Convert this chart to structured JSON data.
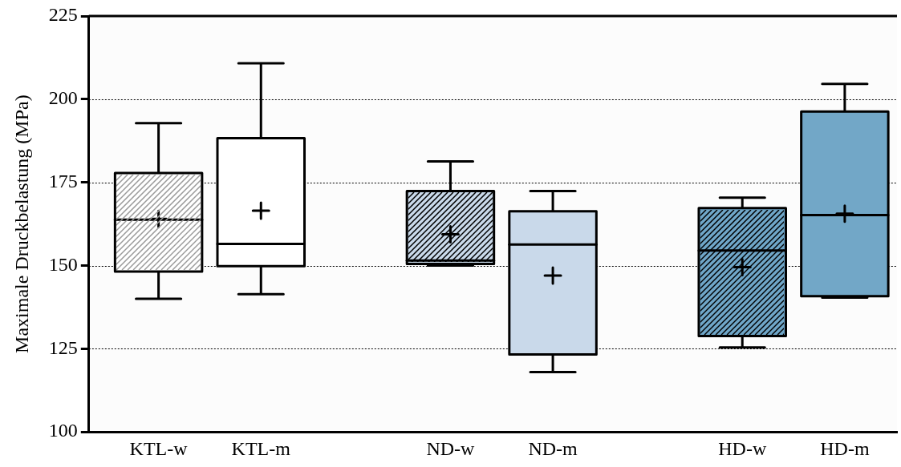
{
  "chart_data": {
    "type": "box",
    "ylabel": "Maximale Druckbelastung (MPa)",
    "categories": [
      "KTL-w",
      "KTL-m",
      "ND-w",
      "ND-m",
      "HD-w",
      "HD-m"
    ],
    "colors": [
      "#ffffff",
      "#ffffff",
      "#c9d9ea",
      "#c9d9ea",
      "#6fa6c8",
      "#72a7c7"
    ],
    "boxes": [
      {
        "low": 140,
        "q1": 148.2,
        "median": 163.8,
        "q3": 177.8,
        "high": 192.8,
        "mean": 164
      },
      {
        "low": 141.4,
        "q1": 149.8,
        "median": 156.5,
        "q3": 188.3,
        "high": 210.8,
        "mean": 166.5
      },
      {
        "low": 150,
        "q1": 150.5,
        "median": 151.5,
        "q3": 172.4,
        "high": 181.3,
        "mean": 159.4
      },
      {
        "low": 118,
        "q1": 123.3,
        "median": 156.3,
        "q3": 166.3,
        "high": 172.4,
        "mean": 147
      },
      {
        "low": 125.4,
        "q1": 128.8,
        "median": 154.5,
        "q3": 167.3,
        "high": 170.4,
        "mean": 149.5
      },
      {
        "low": 140.4,
        "q1": 140.8,
        "median": 165.2,
        "q3": 196.3,
        "high": 204.6,
        "mean": 165.6
      }
    ],
    "ylim": [
      100,
      225
    ],
    "yticks": [
      100,
      125,
      150,
      175,
      200,
      225
    ],
    "grid": "y"
  }
}
